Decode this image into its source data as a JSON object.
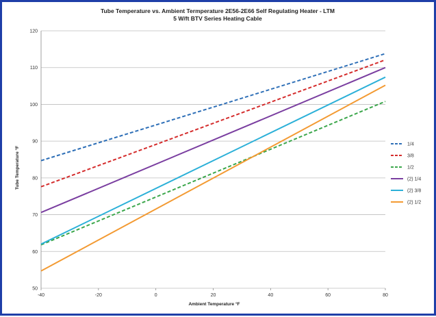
{
  "chart_data": {
    "type": "line",
    "title": "Tube Temperature vs. Ambient Termperature 2E56-2E66 Self Regulating Heater - LTM",
    "subtitle": "5 W/ft BTV Series Heating Cable",
    "xlabel": "Ambient Temperature  °F",
    "ylabel": "Tube Temperature  °F",
    "xlim": [
      -40,
      80
    ],
    "ylim": [
      50,
      120
    ],
    "x_ticks": [
      "-40",
      "-20",
      "0",
      "20",
      "40",
      "60",
      "80"
    ],
    "y_ticks": [
      "50",
      "60",
      "70",
      "80",
      "90",
      "100",
      "110",
      "120"
    ],
    "grid": true,
    "legend_position": "right",
    "series": [
      {
        "name": "1/4",
        "color": "#2e6fb7",
        "dash": "dashed",
        "x": [
          -40,
          80
        ],
        "y": [
          84.7,
          113.8
        ]
      },
      {
        "name": "3/8",
        "color": "#d42b2b",
        "dash": "dashed",
        "x": [
          -40,
          80
        ],
        "y": [
          77.6,
          112.1
        ]
      },
      {
        "name": "1/2",
        "color": "#3aa64a",
        "dash": "dashed",
        "x": [
          -40,
          80
        ],
        "y": [
          61.8,
          100.8
        ]
      },
      {
        "name": "(2) 1/4",
        "color": "#7a3ea0",
        "dash": "solid",
        "x": [
          -40,
          80
        ],
        "y": [
          70.6,
          110.0
        ]
      },
      {
        "name": "(2) 3/8",
        "color": "#2bb0d8",
        "dash": "solid",
        "x": [
          -40,
          80
        ],
        "y": [
          62.0,
          107.4
        ]
      },
      {
        "name": "(2) 1/2",
        "color": "#f39a32",
        "dash": "solid",
        "x": [
          -40,
          80
        ],
        "y": [
          54.7,
          105.2
        ]
      }
    ]
  }
}
